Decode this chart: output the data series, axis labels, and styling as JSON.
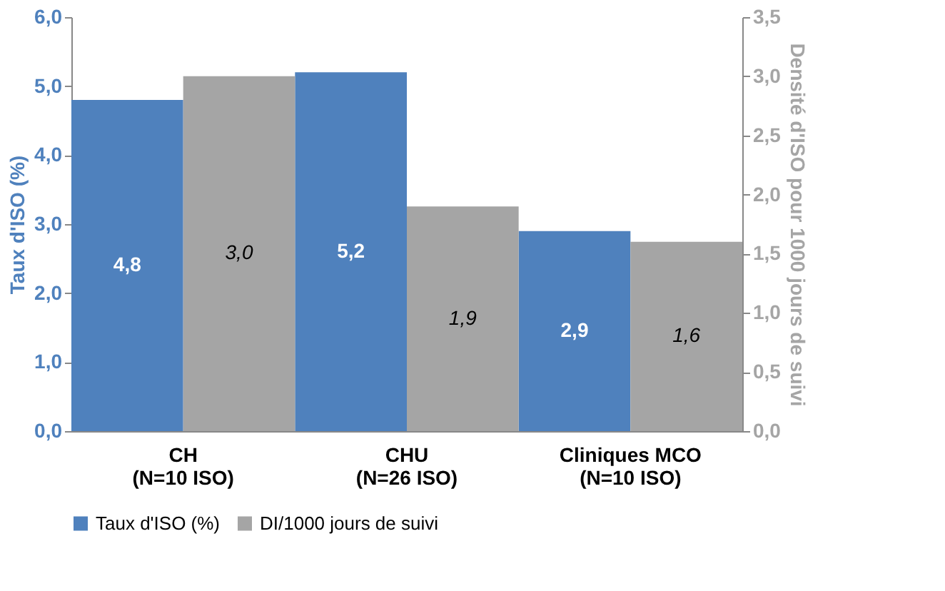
{
  "chart_data": {
    "type": "bar",
    "categories": [
      "CH\n(N=10 ISO)",
      "CHU\n(N=26 ISO)",
      "Cliniques MCO\n(N=10 ISO)"
    ],
    "ylabel": "Taux d'ISO (%)",
    "y2label": "Densité d'ISO pour 1000 jours de suivi",
    "ylim": [
      0,
      6
    ],
    "yticks": [
      {
        "value": 0,
        "label": "0,0"
      },
      {
        "value": 1,
        "label": "1,0"
      },
      {
        "value": 2,
        "label": "2,0"
      },
      {
        "value": 3,
        "label": "3,0"
      },
      {
        "value": 4,
        "label": "4,0"
      },
      {
        "value": 5,
        "label": "5,0"
      },
      {
        "value": 6,
        "label": "6,0"
      }
    ],
    "y2lim": [
      0,
      3.5
    ],
    "y2ticks": [
      {
        "value": 0,
        "label": "0,0"
      },
      {
        "value": 0.5,
        "label": "0,5"
      },
      {
        "value": 1,
        "label": "1,0"
      },
      {
        "value": 1.5,
        "label": "1,5"
      },
      {
        "value": 2,
        "label": "2,0"
      },
      {
        "value": 2.5,
        "label": "2,5"
      },
      {
        "value": 3,
        "label": "3,0"
      },
      {
        "value": 3.5,
        "label": "3,5"
      }
    ],
    "series": [
      {
        "name": "Taux d'ISO (%)",
        "color": "#4f81bd",
        "values": [
          4.8,
          5.2,
          2.9
        ],
        "value_labels": [
          "4,8",
          "5,2",
          "2,9"
        ]
      },
      {
        "name": "DI/1000 jours de suivi",
        "color": "#a5a5a5",
        "values": [
          3.0,
          1.9,
          1.6
        ],
        "value_labels": [
          "3,0",
          "1,9",
          "1,6"
        ],
        "axis": "y2"
      }
    ],
    "legend": "bottom",
    "grid": false
  }
}
